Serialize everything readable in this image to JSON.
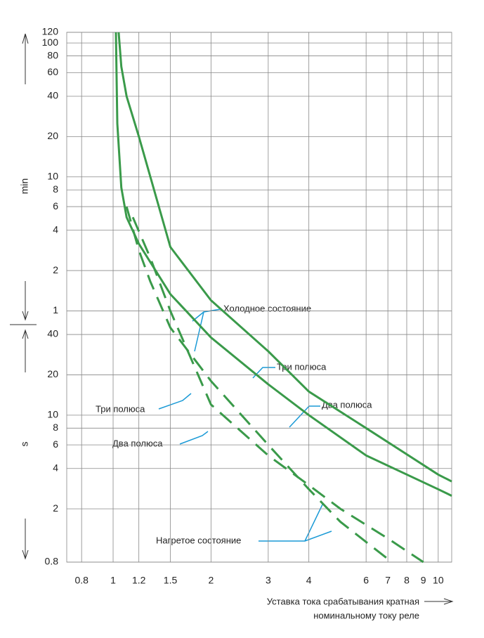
{
  "chart_data": {
    "type": "line",
    "xlabel": [
      "Уставка тока срабатывания кратная",
      "номинальному току реле"
    ],
    "ylabel_minutes": "min",
    "ylabel_seconds": "s",
    "xscale": "log",
    "yscale": "log",
    "grid": true,
    "xlim": [
      0.72,
      11
    ],
    "ylim": [
      0.8,
      7200
    ],
    "xticks": [
      0.8,
      1,
      1.2,
      1.5,
      2,
      3,
      4,
      6,
      7,
      8,
      9,
      10
    ],
    "yticks": [
      {
        "value": 7200,
        "label": "120"
      },
      {
        "value": 6000,
        "label": "100"
      },
      {
        "value": 4800,
        "label": "80"
      },
      {
        "value": 3600,
        "label": "60"
      },
      {
        "value": 2400,
        "label": "40"
      },
      {
        "value": 1200,
        "label": "20"
      },
      {
        "value": 600,
        "label": "10"
      },
      {
        "value": 480,
        "label": "8"
      },
      {
        "value": 360,
        "label": "6"
      },
      {
        "value": 240,
        "label": "4"
      },
      {
        "value": 120,
        "label": "2"
      },
      {
        "value": 60,
        "label": "1"
      },
      40,
      20,
      10,
      8,
      6,
      4,
      2,
      0.8
    ],
    "series": [
      {
        "color": "#3a9a4a",
        "style": "solid",
        "x": [
          1.04,
          1.06,
          1.1,
          1.2,
          1.5,
          2,
          3,
          4,
          6,
          10,
          11
        ],
        "values": [
          7200,
          4000,
          2400,
          1200,
          180,
          72,
          30,
          15,
          8,
          3.6,
          3.2
        ]
      },
      {
        "color": "#3a9a4a",
        "style": "solid",
        "x": [
          1.02,
          1.03,
          1.06,
          1.1,
          1.2,
          1.5,
          2,
          3,
          4,
          6,
          10,
          11
        ],
        "values": [
          7200,
          1500,
          500,
          300,
          190,
          80,
          38,
          17,
          10,
          5,
          2.8,
          2.5
        ]
      },
      {
        "color": "#3a9a4a",
        "style": "dashed",
        "x": [
          1.1,
          1.2,
          1.3,
          1.5,
          2,
          3,
          4,
          5,
          7.2
        ],
        "values": [
          360,
          170,
          100,
          45,
          18,
          6,
          2.8,
          1.6,
          0.8
        ]
      },
      {
        "color": "#3a9a4a",
        "style": "dashed",
        "x": [
          1.15,
          1.3,
          1.5,
          2,
          3,
          4,
          5,
          7,
          9
        ],
        "values": [
          300,
          150,
          60,
          12,
          5,
          3,
          2,
          1.2,
          0.8
        ]
      }
    ],
    "annotations": [
      "Холодное состояние",
      "Три полюса",
      "Два полюса",
      "Три полюса",
      "Два полюса",
      "Нагретое состояние"
    ]
  }
}
